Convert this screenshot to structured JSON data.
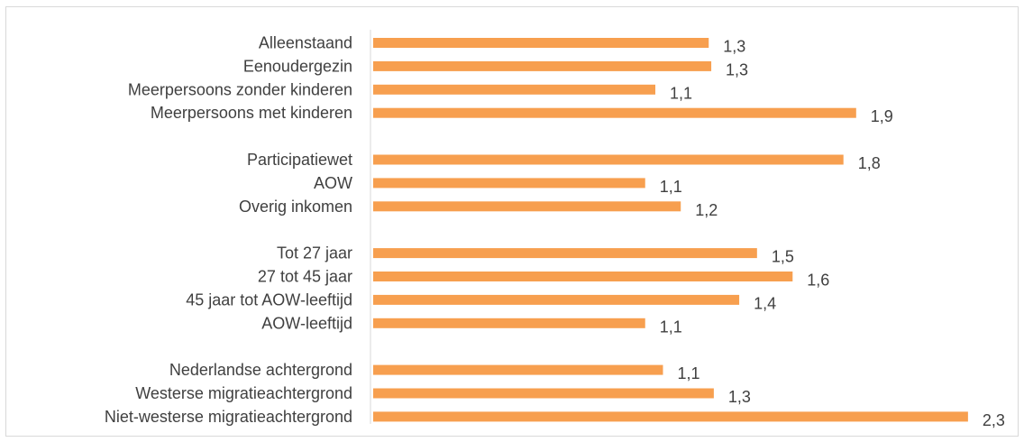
{
  "chart_data": {
    "type": "bar",
    "orientation": "horizontal",
    "categories": [
      "Alleenstaand",
      "Eenoudergezin",
      "Meerpersoons zonder kinderen",
      "Meerpersoons met kinderen",
      "",
      "Participatiewet",
      "AOW",
      "Overig inkomen",
      "",
      "Tot 27 jaar",
      "27 tot 45 jaar",
      "45 jaar tot AOW-leeftijd",
      "AOW-leeftijd",
      "",
      "Nederlandse achtergrond",
      "Westerse migratieachtergrond",
      "Niet-westerse migratieachtergrond"
    ],
    "values": [
      1.32,
      1.33,
      1.11,
      1.9,
      null,
      1.85,
      1.07,
      1.21,
      null,
      1.51,
      1.65,
      1.44,
      1.07,
      null,
      1.14,
      1.34,
      2.34
    ],
    "value_labels": [
      "1,3",
      "1,3",
      "1,1",
      "1,9",
      "",
      "1,8",
      "1,1",
      "1,2",
      "",
      "1,5",
      "1,6",
      "1,4",
      "1,1",
      "",
      "1,1",
      "1,3",
      "2,3"
    ],
    "xlim": [
      0,
      2.4
    ],
    "grid": false,
    "legend": "none",
    "bar_color": "#F79F4F",
    "axis_color": "#d9d9d9",
    "text_color": "#404040"
  }
}
